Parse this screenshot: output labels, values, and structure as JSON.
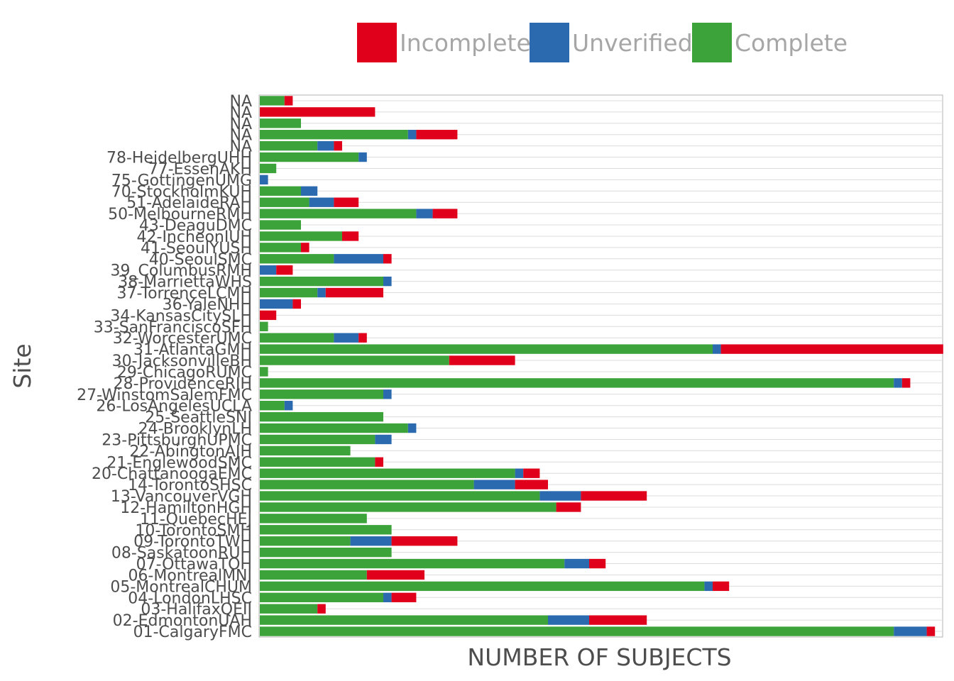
{
  "chart_data": {
    "type": "bar",
    "orientation": "horizontal",
    "stacked": true,
    "xlabel": "NUMBER OF SUBJECTS",
    "ylabel": "Site",
    "xlim": [
      0,
      83
    ],
    "legend": {
      "position": "top",
      "entries": [
        "Incomplete",
        "Unverified",
        "Complete"
      ]
    },
    "colors": {
      "Incomplete": "#e0001b",
      "Unverified": "#2b6aae",
      "Complete": "#3ca33a"
    },
    "grid": {
      "horizontal": true,
      "vertical": false
    },
    "categories": [
      "NA",
      "NA",
      "NA",
      "NA",
      "NA",
      "78-HeidelbergUHH",
      "77-EssenAKH",
      "75-GottingenUMG",
      "70-StockholmKUH",
      "51-AdelaideRAH",
      "50-MelbourneRMH",
      "43-DeaguDMC",
      "42-IncheonIUH",
      "41-SeoulYUSH",
      "40-SeoulSMC",
      "39_ColumbusRMH",
      "38-MarriettaWHS",
      "37-TorrenceLCMH",
      "36-YaleNHH",
      "34-KansasCitySLH",
      "33-SanFranciscoSFH",
      "32-WorcesterUMC",
      "31-AtlantaGMH",
      "30-JacksonvilleBH",
      "29-ChicagoRUMC",
      "28-ProvidenceRIH",
      "27-WinstomSalemFMC",
      "26-LosAngelesUCLA",
      "25-SeattleSNI",
      "24-BrooklynLH",
      "23-PittsburghUPMC",
      "22-AbingtonAJH",
      "21-EnglewoodSMC",
      "20-ChattanoogaEMC",
      "14-TorontoSHSC",
      "13-VancouverVGH",
      "12-HamiltonHGH",
      "11-QuebecHEJ",
      "10-TorontoSMH",
      "09-TorontoTWH",
      "08-SaskatoonRUH",
      "07-OttawaTOH",
      "06-MontrealMNI",
      "05-MontrealCHUM",
      "04-LondonLHSC",
      "03-HalifaxQEII",
      "02-EdmontonUAH",
      "01-CalgaryFMC"
    ],
    "series": [
      {
        "name": "Complete",
        "values": [
          3,
          0,
          5,
          18,
          7,
          12,
          2,
          0,
          5,
          6,
          19,
          5,
          10,
          5,
          9,
          0,
          15,
          7,
          0,
          0,
          1,
          9,
          55,
          23,
          1,
          77,
          15,
          3,
          15,
          18,
          14,
          11,
          14,
          31,
          26,
          34,
          36,
          13,
          16,
          11,
          16,
          37,
          13,
          54,
          15,
          7,
          35,
          77
        ]
      },
      {
        "name": "Unverified",
        "values": [
          0,
          0,
          0,
          1,
          2,
          1,
          0,
          1,
          2,
          3,
          2,
          0,
          0,
          0,
          6,
          2,
          1,
          1,
          4,
          0,
          0,
          3,
          1,
          0,
          0,
          1,
          1,
          1,
          0,
          1,
          2,
          0,
          0,
          1,
          5,
          5,
          0,
          0,
          0,
          5,
          0,
          3,
          0,
          1,
          1,
          0,
          5,
          4
        ]
      },
      {
        "name": "Incomplete",
        "values": [
          1,
          14,
          0,
          5,
          1,
          0,
          0,
          0,
          0,
          3,
          3,
          0,
          2,
          1,
          1,
          2,
          0,
          7,
          1,
          2,
          0,
          1,
          27,
          8,
          0,
          1,
          0,
          0,
          0,
          0,
          0,
          0,
          1,
          2,
          4,
          8,
          3,
          0,
          0,
          8,
          0,
          2,
          7,
          2,
          3,
          1,
          7,
          1
        ]
      }
    ]
  }
}
